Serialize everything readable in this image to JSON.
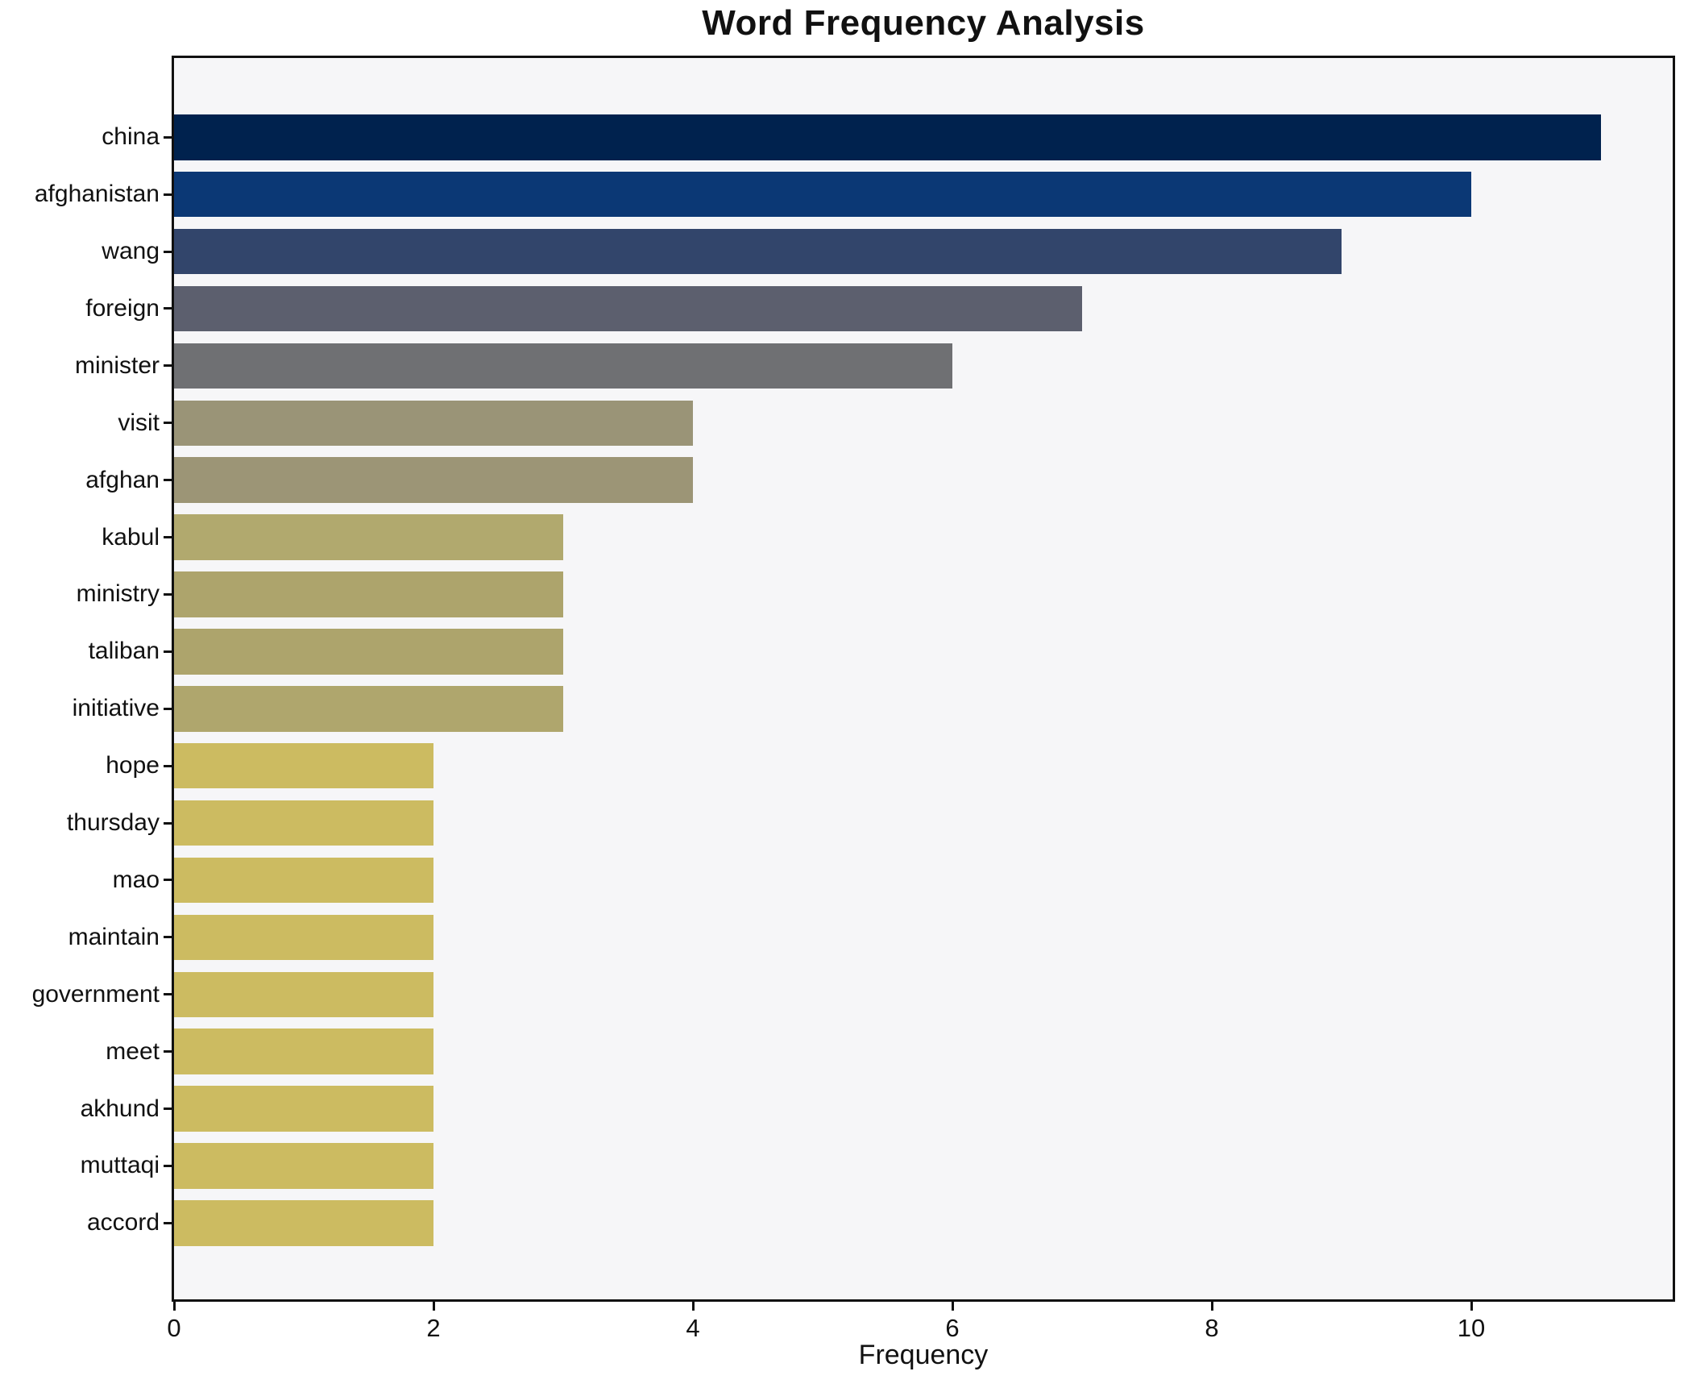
{
  "chart_data": {
    "type": "bar",
    "orientation": "horizontal",
    "title": "Word Frequency Analysis",
    "xlabel": "Frequency",
    "ylabel": "",
    "categories": [
      "china",
      "afghanistan",
      "wang",
      "foreign",
      "minister",
      "visit",
      "afghan",
      "kabul",
      "ministry",
      "taliban",
      "initiative",
      "hope",
      "thursday",
      "mao",
      "maintain",
      "government",
      "meet",
      "akhund",
      "muttaqi",
      "accord"
    ],
    "values": [
      11,
      10,
      9,
      7,
      6,
      4,
      4,
      3,
      3,
      3,
      3,
      2,
      2,
      2,
      2,
      2,
      2,
      2,
      2,
      2
    ],
    "bar_colors": [
      "#00224e",
      "#0b3875",
      "#32456b",
      "#5c5f6e",
      "#6f7073",
      "#9a9477",
      "#9c9576",
      "#b1a96e",
      "#ada46c",
      "#ada46c",
      "#afa66d",
      "#ccbb61",
      "#ccbb61",
      "#ccbb61",
      "#ccbb61",
      "#ccbb61",
      "#ccbb61",
      "#ccbb61",
      "#ccbb61",
      "#ccbb61"
    ],
    "xticks": [
      0,
      2,
      4,
      6,
      8,
      10
    ],
    "xlim": [
      0,
      11.55
    ],
    "grid": false,
    "legend": null,
    "colors": {
      "plot_background": "#f6f6f8",
      "figure_background": "#ffffff",
      "frame": "#111111",
      "text": "#111111"
    }
  }
}
